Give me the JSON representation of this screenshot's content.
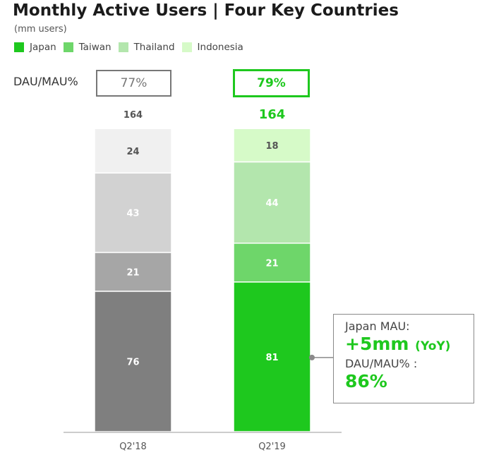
{
  "title": "Monthly Active Users | Four Key Countries",
  "subtitle": "(mm users)",
  "legend": [
    {
      "label": "Japan",
      "color": "#1ec81e"
    },
    {
      "label": "Taiwan",
      "color": "#6ed66a"
    },
    {
      "label": "Thailand",
      "color": "#b3e6ad"
    },
    {
      "label": "Indonesia",
      "color": "#d6fac8"
    }
  ],
  "dau_mau": {
    "label": "DAU/MAU%",
    "values": [
      "77%",
      "79%"
    ]
  },
  "callout": {
    "line1": "Japan MAU:",
    "line2": "+5mm",
    "line2_suffix": "(YoY)",
    "line3": "DAU/MAU% :",
    "line4": "86%"
  },
  "chart_data": {
    "type": "bar",
    "stacked": true,
    "categories": [
      "Q2'18",
      "Q2'19"
    ],
    "series": [
      {
        "name": "Japan",
        "values": [
          76,
          81
        ]
      },
      {
        "name": "Taiwan",
        "values": [
          21,
          21
        ]
      },
      {
        "name": "Thailand",
        "values": [
          43,
          44
        ]
      },
      {
        "name": "Indonesia",
        "values": [
          24,
          18
        ]
      }
    ],
    "totals": [
      "164",
      "164"
    ],
    "colors": {
      "Q2'18": [
        "#7f7f7f",
        "#a6a6a6",
        "#d2d2d2",
        "#f0f0f0"
      ],
      "Q2'19": [
        "#1ec81e",
        "#6ed66a",
        "#b3e6ad",
        "#d6fac8"
      ]
    },
    "label_colors": {
      "Q2'18": [
        "#ffffff",
        "#ffffff",
        "#ffffff",
        "#555555"
      ],
      "Q2'19": [
        "#ffffff",
        "#ffffff",
        "#ffffff",
        "#555555"
      ]
    },
    "total_colors": [
      "#555555",
      "#1ec81e"
    ]
  }
}
